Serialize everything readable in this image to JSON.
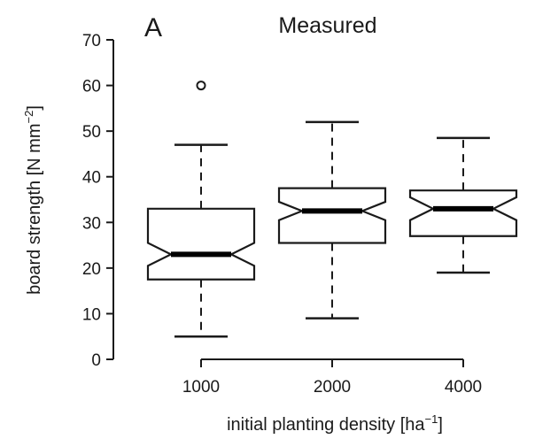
{
  "chart_data": {
    "type": "boxplot",
    "panel_label": "A",
    "title": "Measured",
    "xlabel": {
      "main": "initial planting density [ha",
      "sup": "−1",
      "tail": "]"
    },
    "ylabel": {
      "main": "board strength [N mm",
      "sup": "−2",
      "tail": "]"
    },
    "ylim": [
      0,
      70
    ],
    "yticks": [
      "0",
      "10",
      "20",
      "30",
      "40",
      "50",
      "60",
      "70"
    ],
    "notched": true,
    "categories": [
      "1000",
      "2000",
      "4000"
    ],
    "boxes": [
      {
        "category": "1000",
        "whisker_low": 5,
        "q1": 17.5,
        "median": 23,
        "q3": 33,
        "whisker_high": 47,
        "notch_low": 20.5,
        "notch_high": 25.5,
        "outliers": [
          60
        ]
      },
      {
        "category": "2000",
        "whisker_low": 9,
        "q1": 25.5,
        "median": 32.5,
        "q3": 37.5,
        "whisker_high": 52,
        "notch_low": 30.5,
        "notch_high": 34.5,
        "outliers": []
      },
      {
        "category": "4000",
        "whisker_low": 19,
        "q1": 27,
        "median": 33,
        "q3": 37,
        "whisker_high": 48.5,
        "notch_low": 30.5,
        "notch_high": 35.5,
        "outliers": []
      }
    ]
  }
}
